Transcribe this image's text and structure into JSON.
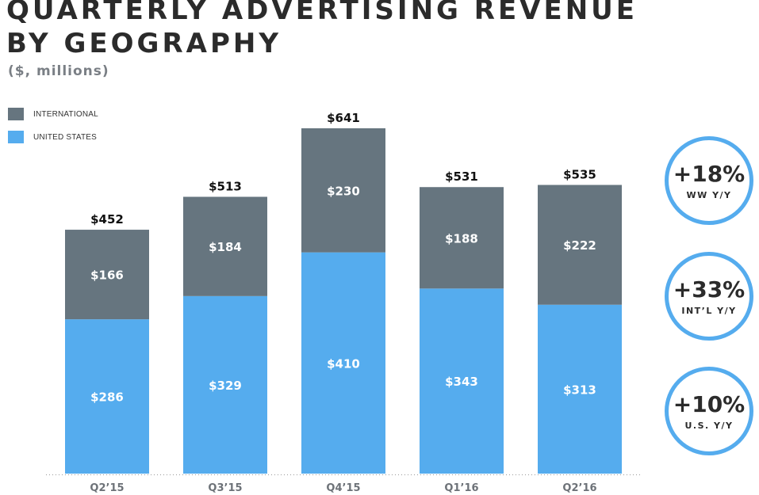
{
  "chart_data": {
    "type": "bar",
    "stacked": true,
    "title": "QUARTERLY ADVERTISING REVENUE BY GEOGRAPHY",
    "subtitle": "($, millions)",
    "categories": [
      "Q2’15",
      "Q3’15",
      "Q4’15",
      "Q1’16",
      "Q2’16"
    ],
    "series": [
      {
        "name": "UNITED STATES",
        "color": "#55acee",
        "values": [
          286,
          329,
          410,
          343,
          313
        ],
        "labels": [
          "$286",
          "$329",
          "$410",
          "$343",
          "$313"
        ]
      },
      {
        "name": "INTERNATIONAL",
        "color": "#66757f",
        "values": [
          166,
          184,
          230,
          188,
          222
        ],
        "labels": [
          "$166",
          "$184",
          "$230",
          "$188",
          "$222"
        ]
      }
    ],
    "totals": [
      452,
      513,
      641,
      531,
      535
    ],
    "total_labels": [
      "$452",
      "$513",
      "$641",
      "$531",
      "$535"
    ],
    "ylim": [
      0,
      700
    ],
    "legend_placement": "top-left",
    "grid": false
  },
  "legend": [
    {
      "label": "INTERNATIONAL",
      "color": "#66757f"
    },
    {
      "label": "UNITED STATES",
      "color": "#55acee"
    }
  ],
  "badges": [
    {
      "value": "+18%",
      "label": "WW Y/Y"
    },
    {
      "value": "+33%",
      "label": "INT’L Y/Y"
    },
    {
      "value": "+10%",
      "label": "U.S. Y/Y"
    }
  ]
}
